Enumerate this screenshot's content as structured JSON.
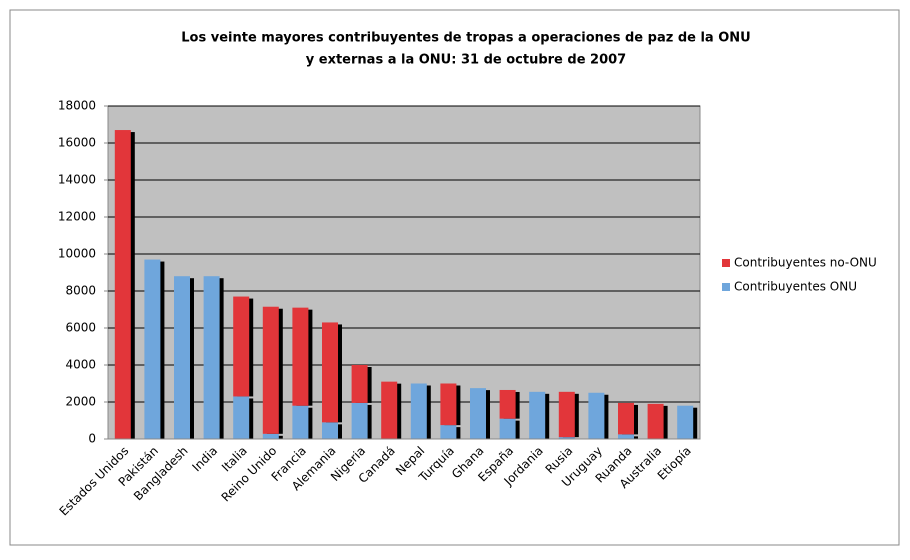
{
  "chart_data": {
    "type": "stacked_bar",
    "title": [
      "Los veinte mayores contribuyentes de tropas a operaciones de paz de la ONU",
      "y externas a la ONU: 31 de octubre de 2007"
    ],
    "categories": [
      "Estados Unidos",
      "Pakistán",
      "Bangladesh",
      "India",
      "Italia",
      "Reino Unido",
      "Francia",
      "Alemania",
      "Nigeria",
      "Canadá",
      "Nepal",
      "Turquía",
      "Ghana",
      "España",
      "Jordania",
      "Rusia",
      "Uruguay",
      "Ruanda",
      "Australia",
      "Etiopía"
    ],
    "series": [
      {
        "name": "Contribuyentes no-ONU",
        "color": "#e2363a",
        "values": [
          16700,
          0,
          0,
          0,
          5400,
          6870,
          5300,
          5400,
          2050,
          3100,
          0,
          2250,
          0,
          1550,
          0,
          2450,
          0,
          1700,
          1900,
          0
        ]
      },
      {
        "name": "Contribuyentes ONU",
        "color": "#6fa6dc",
        "values": [
          0,
          9700,
          8800,
          8800,
          2300,
          280,
          1800,
          900,
          1950,
          0,
          3000,
          750,
          2750,
          1100,
          2550,
          100,
          2500,
          250,
          0,
          1800
        ]
      }
    ],
    "ylim": [
      0,
      18000
    ],
    "yticks": [
      0,
      2000,
      4000,
      6000,
      8000,
      10000,
      12000,
      14000,
      16000,
      18000
    ],
    "grid": true,
    "legend": "right"
  }
}
